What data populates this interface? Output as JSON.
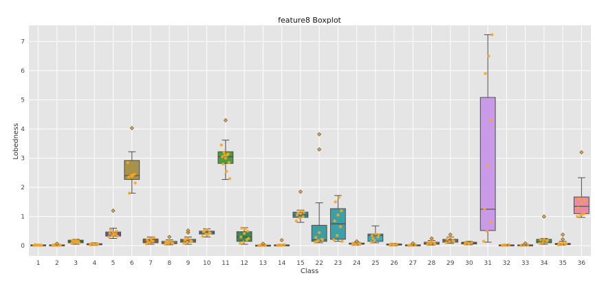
{
  "chart_data": {
    "type": "boxplot",
    "title": "feature8 Boxplot",
    "xlabel": "Class",
    "ylabel": "Lobedness",
    "ylim": [
      -0.35,
      7.55
    ],
    "yticks": [
      0,
      1,
      2,
      3,
      4,
      5,
      6,
      7
    ],
    "grid": true,
    "background": "#e5e5e5",
    "point_color": "#f5a623",
    "categories": [
      "1",
      "2",
      "3",
      "4",
      "5",
      "6",
      "7",
      "8",
      "9",
      "10",
      "11",
      "12",
      "13",
      "14",
      "15",
      "22",
      "23",
      "24",
      "25",
      "26",
      "27",
      "28",
      "29",
      "30",
      "31",
      "32",
      "33",
      "34",
      "35",
      "36"
    ],
    "boxes": [
      {
        "label": "1",
        "min": 0.0,
        "q1": 0.01,
        "median": 0.02,
        "q3": 0.03,
        "max": 0.05,
        "outliers": [],
        "points": [
          0.01,
          0.02,
          0.02,
          0.03,
          0.02,
          0.01,
          0.03,
          0.02
        ],
        "color": "#3c5f9e"
      },
      {
        "label": "2",
        "min": 0.0,
        "q1": 0.01,
        "median": 0.02,
        "q3": 0.03,
        "max": 0.05,
        "outliers": [
          0.07
        ],
        "points": [
          0.01,
          0.02,
          0.02,
          0.03,
          0.01,
          0.02
        ],
        "color": "#d98845"
      },
      {
        "label": "3",
        "min": 0.05,
        "q1": 0.1,
        "median": 0.15,
        "q3": 0.19,
        "max": 0.22,
        "outliers": [],
        "points": [
          0.08,
          0.12,
          0.15,
          0.18,
          0.2,
          0.1,
          0.16,
          0.13
        ],
        "color": "#3f8f4a"
      },
      {
        "label": "4",
        "min": 0.01,
        "q1": 0.03,
        "median": 0.05,
        "q3": 0.07,
        "max": 0.1,
        "outliers": [],
        "points": [
          0.03,
          0.05,
          0.06,
          0.07,
          0.04,
          0.05
        ],
        "color": "#b83b3b"
      },
      {
        "label": "5",
        "min": 0.25,
        "q1": 0.33,
        "median": 0.4,
        "q3": 0.47,
        "max": 0.6,
        "outliers": [
          1.2
        ],
        "points": [
          0.3,
          0.35,
          0.4,
          0.42,
          0.45,
          0.5,
          0.55,
          0.38,
          0.33
        ],
        "color": "#7a5ea8"
      },
      {
        "label": "6",
        "min": 1.8,
        "q1": 2.27,
        "median": 2.4,
        "q3": 2.92,
        "max": 3.22,
        "outliers": [
          4.03
        ],
        "points": [
          2.85,
          2.4,
          2.45,
          2.35,
          2.38,
          2.15,
          1.8,
          2.42
        ],
        "color": "#a8924a"
      },
      {
        "label": "7",
        "min": 0.05,
        "q1": 0.1,
        "median": 0.16,
        "q3": 0.23,
        "max": 0.3,
        "outliers": [],
        "points": [
          0.06,
          0.1,
          0.15,
          0.2,
          0.25,
          0.28,
          0.12,
          0.18
        ],
        "color": "#8f6b4a"
      },
      {
        "label": "8",
        "min": 0.03,
        "q1": 0.07,
        "median": 0.1,
        "q3": 0.15,
        "max": 0.2,
        "outliers": [
          0.3
        ],
        "points": [
          0.05,
          0.08,
          0.1,
          0.13,
          0.15,
          0.09,
          0.12
        ],
        "color": "#a0a0a0"
      },
      {
        "label": "9",
        "min": 0.05,
        "q1": 0.12,
        "median": 0.17,
        "q3": 0.22,
        "max": 0.3,
        "outliers": [
          0.45,
          0.52
        ],
        "points": [
          0.08,
          0.12,
          0.17,
          0.2,
          0.25,
          0.15,
          0.22
        ],
        "color": "#8a8a5a"
      },
      {
        "label": "10",
        "min": 0.3,
        "q1": 0.4,
        "median": 0.45,
        "q3": 0.5,
        "max": 0.58,
        "outliers": [],
        "points": [
          0.32,
          0.4,
          0.45,
          0.48,
          0.55,
          0.43,
          0.5,
          0.38
        ],
        "color": "#3a8fa8"
      },
      {
        "label": "11",
        "min": 2.27,
        "q1": 2.82,
        "median": 3.05,
        "q3": 3.22,
        "max": 3.62,
        "outliers": [
          4.3
        ],
        "points": [
          3.45,
          3.1,
          3.15,
          3.05,
          3.0,
          2.85,
          2.8,
          2.55,
          2.3,
          3.2,
          3.1
        ],
        "color": "#4a9e3c"
      },
      {
        "label": "12",
        "min": 0.05,
        "q1": 0.15,
        "median": 0.3,
        "q3": 0.48,
        "max": 0.62,
        "outliers": [],
        "points": [
          0.08,
          0.12,
          0.2,
          0.3,
          0.42,
          0.5,
          0.6,
          0.58,
          0.25
        ],
        "color": "#3a8a5a"
      },
      {
        "label": "13",
        "min": 0.0,
        "q1": 0.01,
        "median": 0.01,
        "q3": 0.02,
        "max": 0.04,
        "outliers": [
          0.07
        ],
        "points": [
          0.01,
          0.01,
          0.02,
          0.01,
          0.02
        ],
        "color": "#5a8ac8"
      },
      {
        "label": "14",
        "min": 0.0,
        "q1": 0.01,
        "median": 0.02,
        "q3": 0.03,
        "max": 0.05,
        "outliers": [
          0.19
        ],
        "points": [
          0.01,
          0.02,
          0.03,
          0.02,
          0.01
        ],
        "color": "#d98845"
      },
      {
        "label": "15",
        "min": 0.8,
        "q1": 0.97,
        "median": 1.05,
        "q3": 1.15,
        "max": 1.22,
        "outliers": [
          1.85
        ],
        "points": [
          0.85,
          0.95,
          1.0,
          1.05,
          1.1,
          1.15,
          1.12,
          1.2
        ],
        "color": "#3c8a9e"
      },
      {
        "label": "22",
        "min": 0.1,
        "q1": 0.15,
        "median": 0.2,
        "q3": 0.7,
        "max": 1.47,
        "outliers": [
          3.3,
          3.82
        ],
        "points": [
          0.12,
          0.18,
          0.22,
          0.28,
          0.45,
          0.2,
          0.15
        ],
        "color": "#3c9ea0"
      },
      {
        "label": "23",
        "min": 0.15,
        "q1": 0.22,
        "median": 0.75,
        "q3": 1.27,
        "max": 1.72,
        "outliers": [],
        "points": [
          0.2,
          0.35,
          0.65,
          0.85,
          1.05,
          1.2,
          1.5,
          1.65,
          0.15
        ],
        "color": "#3ca0a8"
      },
      {
        "label": "24",
        "min": 0.02,
        "q1": 0.05,
        "median": 0.07,
        "q3": 0.09,
        "max": 0.12,
        "outliers": [
          0.15
        ],
        "points": [
          0.04,
          0.06,
          0.07,
          0.08,
          0.1,
          0.05
        ],
        "color": "#4aa0a0"
      },
      {
        "label": "25",
        "min": 0.1,
        "q1": 0.15,
        "median": 0.35,
        "q3": 0.4,
        "max": 0.68,
        "outliers": [],
        "points": [
          0.12,
          0.18,
          0.3,
          0.35,
          0.4,
          0.38,
          0.25
        ],
        "color": "#3ca8c0"
      },
      {
        "label": "26",
        "min": 0.0,
        "q1": 0.02,
        "median": 0.04,
        "q3": 0.06,
        "max": 0.08,
        "outliers": [],
        "points": [
          0.02,
          0.04,
          0.05,
          0.06,
          0.03
        ],
        "color": "#a0a0a0"
      },
      {
        "label": "27",
        "min": 0.0,
        "q1": 0.01,
        "median": 0.02,
        "q3": 0.03,
        "max": 0.05,
        "outliers": [
          0.08
        ],
        "points": [
          0.01,
          0.02,
          0.03,
          0.02
        ],
        "color": "#a0a0a0"
      },
      {
        "label": "28",
        "min": 0.02,
        "q1": 0.05,
        "median": 0.08,
        "q3": 0.12,
        "max": 0.18,
        "outliers": [
          0.25
        ],
        "points": [
          0.04,
          0.07,
          0.09,
          0.12,
          0.15,
          0.06
        ],
        "color": "#c88ab0"
      },
      {
        "label": "29",
        "min": 0.08,
        "q1": 0.12,
        "median": 0.17,
        "q3": 0.22,
        "max": 0.3,
        "outliers": [
          0.38
        ],
        "points": [
          0.1,
          0.14,
          0.18,
          0.22,
          0.28,
          0.15
        ],
        "color": "#8a8a8a"
      },
      {
        "label": "30",
        "min": 0.03,
        "q1": 0.06,
        "median": 0.09,
        "q3": 0.12,
        "max": 0.15,
        "outliers": [],
        "points": [
          0.05,
          0.08,
          0.1,
          0.12,
          0.07
        ],
        "color": "#9e9e5a"
      },
      {
        "label": "31",
        "min": 0.12,
        "q1": 0.52,
        "median": 1.25,
        "q3": 5.08,
        "max": 7.23,
        "outliers": [],
        "points": [
          0.15,
          0.5,
          0.8,
          1.25,
          2.75,
          4.3,
          5.9,
          6.5,
          7.23
        ],
        "color": "#c99ae8"
      },
      {
        "label": "32",
        "min": 0.0,
        "q1": 0.01,
        "median": 0.02,
        "q3": 0.03,
        "max": 0.05,
        "outliers": [],
        "points": [
          0.01,
          0.02,
          0.03,
          0.02
        ],
        "color": "#5a7ac8"
      },
      {
        "label": "33",
        "min": 0.0,
        "q1": 0.01,
        "median": 0.02,
        "q3": 0.03,
        "max": 0.05,
        "outliers": [
          0.08
        ],
        "points": [
          0.01,
          0.02,
          0.03
        ],
        "color": "#d98845"
      },
      {
        "label": "34",
        "min": 0.05,
        "q1": 0.1,
        "median": 0.15,
        "q3": 0.22,
        "max": 0.25,
        "outliers": [
          1.0
        ],
        "points": [
          0.08,
          0.12,
          0.15,
          0.2,
          0.22,
          0.18
        ],
        "color": "#5a9e5a"
      },
      {
        "label": "35",
        "min": 0.02,
        "q1": 0.04,
        "median": 0.06,
        "q3": 0.08,
        "max": 0.15,
        "outliers": [
          0.22,
          0.38
        ],
        "points": [
          0.03,
          0.05,
          0.06,
          0.08,
          0.1,
          0.07
        ],
        "color": "#5a9ec8"
      },
      {
        "label": "36",
        "min": 0.97,
        "q1": 1.1,
        "median": 1.35,
        "q3": 1.67,
        "max": 2.33,
        "outliers": [
          3.2
        ],
        "points": [
          1.0,
          1.05,
          1.1,
          1.3,
          1.45,
          1.55,
          1.6,
          1.08
        ],
        "color": "#e88aa8"
      }
    ]
  }
}
